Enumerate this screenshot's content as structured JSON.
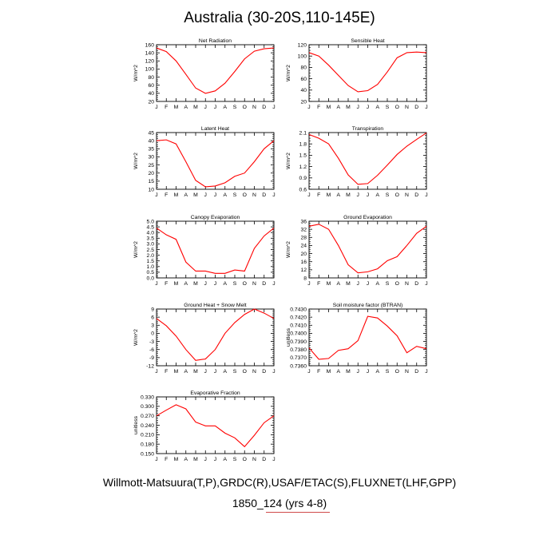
{
  "title": "Australia (30-20S,110-145E)",
  "footer": {
    "line1": "Willmott-Matsuura(T,P),GRDC(R),USAF/ETAC(S),FLUXNET(LHF,GPP)",
    "line2": "1850_124 (yrs 4-8)"
  },
  "colors": {
    "line": "#ff0000",
    "underline": "#d04a4a"
  },
  "chart_data": [
    {
      "type": "line",
      "title": "Net Radiation",
      "ylabel": "W/m^2",
      "categories": [
        "J",
        "F",
        "M",
        "A",
        "M",
        "J",
        "J",
        "A",
        "S",
        "O",
        "N",
        "D",
        "J"
      ],
      "ylim": [
        20,
        160
      ],
      "yticks": [
        {
          "v": 20,
          "t": "20"
        },
        {
          "v": 40,
          "t": "40"
        },
        {
          "v": 60,
          "t": "60"
        },
        {
          "v": 80,
          "t": "80"
        },
        {
          "v": 100,
          "t": "100"
        },
        {
          "v": 120,
          "t": "120"
        },
        {
          "v": 140,
          "t": "140"
        },
        {
          "v": 160,
          "t": "160"
        }
      ],
      "values": [
        152,
        143,
        120,
        87,
        53,
        40,
        46,
        65,
        94,
        125,
        144,
        150,
        152
      ]
    },
    {
      "type": "line",
      "title": "Sensible Heat",
      "ylabel": "W/m^2",
      "categories": [
        "J",
        "F",
        "M",
        "A",
        "M",
        "J",
        "J",
        "A",
        "S",
        "O",
        "N",
        "D",
        "J"
      ],
      "ylim": [
        20,
        120
      ],
      "yticks": [
        {
          "v": 20,
          "t": "20"
        },
        {
          "v": 40,
          "t": "40"
        },
        {
          "v": 60,
          "t": "60"
        },
        {
          "v": 80,
          "t": "80"
        },
        {
          "v": 100,
          "t": "100"
        },
        {
          "v": 120,
          "t": "120"
        }
      ],
      "values": [
        106,
        100,
        84,
        66,
        48,
        37,
        39,
        50,
        72,
        97,
        106,
        107,
        106
      ]
    },
    {
      "type": "line",
      "title": "Latent Heat",
      "ylabel": "W/m^2",
      "categories": [
        "J",
        "F",
        "M",
        "A",
        "M",
        "J",
        "J",
        "A",
        "S",
        "O",
        "N",
        "D",
        "J"
      ],
      "ylim": [
        10,
        45
      ],
      "yticks": [
        {
          "v": 10,
          "t": "10"
        },
        {
          "v": 15,
          "t": "15"
        },
        {
          "v": 20,
          "t": "20"
        },
        {
          "v": 25,
          "t": "25"
        },
        {
          "v": 30,
          "t": "30"
        },
        {
          "v": 35,
          "t": "35"
        },
        {
          "v": 40,
          "t": "40"
        },
        {
          "v": 45,
          "t": "45"
        }
      ],
      "values": [
        40,
        40.5,
        38,
        27,
        15.5,
        11.5,
        12,
        14,
        18,
        20,
        27,
        35,
        40
      ]
    },
    {
      "type": "line",
      "title": "Transpiration",
      "ylabel": "W/m^2",
      "categories": [
        "J",
        "F",
        "M",
        "A",
        "M",
        "J",
        "J",
        "A",
        "S",
        "O",
        "N",
        "D",
        "J"
      ],
      "ylim": [
        0.6,
        2.1
      ],
      "yticks": [
        {
          "v": 0.6,
          "t": "0.6"
        },
        {
          "v": 0.9,
          "t": "0.9"
        },
        {
          "v": 1.2,
          "t": "1.2"
        },
        {
          "v": 1.5,
          "t": "1.5"
        },
        {
          "v": 1.8,
          "t": "1.8"
        },
        {
          "v": 2.1,
          "t": "2.1"
        }
      ],
      "values": [
        2.05,
        1.95,
        1.8,
        1.42,
        0.98,
        0.73,
        0.75,
        0.97,
        1.24,
        1.52,
        1.74,
        1.92,
        2.09
      ]
    },
    {
      "type": "line",
      "title": "Canopy Evaporation",
      "ylabel": "W/m^2",
      "categories": [
        "J",
        "F",
        "M",
        "A",
        "M",
        "J",
        "J",
        "A",
        "S",
        "O",
        "N",
        "D",
        "J"
      ],
      "ylim": [
        0,
        5
      ],
      "yticks": [
        {
          "v": 0,
          "t": "0.0"
        },
        {
          "v": 0.5,
          "t": "0.5"
        },
        {
          "v": 1,
          "t": "1.0"
        },
        {
          "v": 1.5,
          "t": "1.5"
        },
        {
          "v": 2,
          "t": "2.0"
        },
        {
          "v": 2.5,
          "t": "2.5"
        },
        {
          "v": 3,
          "t": "3.0"
        },
        {
          "v": 3.5,
          "t": "3.5"
        },
        {
          "v": 4,
          "t": "4.0"
        },
        {
          "v": 4.5,
          "t": "4.5"
        },
        {
          "v": 5,
          "t": "5.0"
        }
      ],
      "values": [
        4.4,
        3.8,
        3.4,
        1.4,
        0.6,
        0.6,
        0.4,
        0.4,
        0.7,
        0.6,
        2.6,
        3.7,
        4.4
      ]
    },
    {
      "type": "line",
      "title": "Ground Evaporation",
      "ylabel": "W/m^2",
      "categories": [
        "J",
        "F",
        "M",
        "A",
        "M",
        "J",
        "J",
        "A",
        "S",
        "O",
        "N",
        "D",
        "J"
      ],
      "ylim": [
        8,
        36
      ],
      "yticks": [
        {
          "v": 8,
          "t": "8"
        },
        {
          "v": 12,
          "t": "12"
        },
        {
          "v": 16,
          "t": "16"
        },
        {
          "v": 20,
          "t": "20"
        },
        {
          "v": 24,
          "t": "24"
        },
        {
          "v": 28,
          "t": "28"
        },
        {
          "v": 32,
          "t": "32"
        },
        {
          "v": 36,
          "t": "36"
        }
      ],
      "values": [
        33.5,
        34.5,
        32,
        24,
        14.5,
        10.5,
        11,
        12.5,
        16.5,
        18.5,
        24,
        30,
        33.5
      ]
    },
    {
      "type": "line",
      "title": "Ground Heat + Snow Melt",
      "ylabel": "W/m^2",
      "categories": [
        "J",
        "F",
        "M",
        "A",
        "M",
        "J",
        "J",
        "A",
        "S",
        "O",
        "N",
        "D",
        "J"
      ],
      "ylim": [
        -12,
        9
      ],
      "yticks": [
        {
          "v": -12,
          "t": "-12"
        },
        {
          "v": -9,
          "t": "-9"
        },
        {
          "v": -6,
          "t": "-6"
        },
        {
          "v": -3,
          "t": "-3"
        },
        {
          "v": 0,
          "t": "0"
        },
        {
          "v": 3,
          "t": "3"
        },
        {
          "v": 6,
          "t": "6"
        },
        {
          "v": 9,
          "t": "9"
        }
      ],
      "values": [
        5.5,
        2.8,
        -1,
        -6,
        -10,
        -9.5,
        -6,
        0,
        4,
        7,
        9,
        7.5,
        5.5
      ]
    },
    {
      "type": "line",
      "title": "Soil moisture factor (BTRAN)",
      "ylabel": "unitless",
      "categories": [
        "J",
        "F",
        "M",
        "A",
        "M",
        "J",
        "J",
        "A",
        "S",
        "O",
        "N",
        "D",
        "J"
      ],
      "ylim": [
        0.736,
        0.743
      ],
      "yticks": [
        {
          "v": 0.736,
          "t": "0.7360"
        },
        {
          "v": 0.737,
          "t": "0.7370"
        },
        {
          "v": 0.738,
          "t": "0.7380"
        },
        {
          "v": 0.739,
          "t": "0.7390"
        },
        {
          "v": 0.74,
          "t": "0.7400"
        },
        {
          "v": 0.741,
          "t": "0.7410"
        },
        {
          "v": 0.742,
          "t": "0.7420"
        },
        {
          "v": 0.743,
          "t": "0.7430"
        }
      ],
      "values": [
        0.7382,
        0.7368,
        0.7369,
        0.7379,
        0.7381,
        0.7391,
        0.7421,
        0.7419,
        0.7409,
        0.7397,
        0.7376,
        0.7384,
        0.7381
      ]
    },
    {
      "type": "line",
      "title": "Evaporative Fraction",
      "ylabel": "unitless",
      "categories": [
        "J",
        "F",
        "M",
        "A",
        "M",
        "J",
        "J",
        "A",
        "S",
        "O",
        "N",
        "D",
        "J"
      ],
      "ylim": [
        0.15,
        0.33
      ],
      "yticks": [
        {
          "v": 0.15,
          "t": "0.150"
        },
        {
          "v": 0.18,
          "t": "0.180"
        },
        {
          "v": 0.21,
          "t": "0.210"
        },
        {
          "v": 0.24,
          "t": "0.240"
        },
        {
          "v": 0.27,
          "t": "0.270"
        },
        {
          "v": 0.3,
          "t": "0.300"
        },
        {
          "v": 0.33,
          "t": "0.330"
        }
      ],
      "values": [
        0.27,
        0.288,
        0.305,
        0.292,
        0.25,
        0.238,
        0.238,
        0.215,
        0.2,
        0.172,
        0.208,
        0.248,
        0.27
      ]
    }
  ]
}
